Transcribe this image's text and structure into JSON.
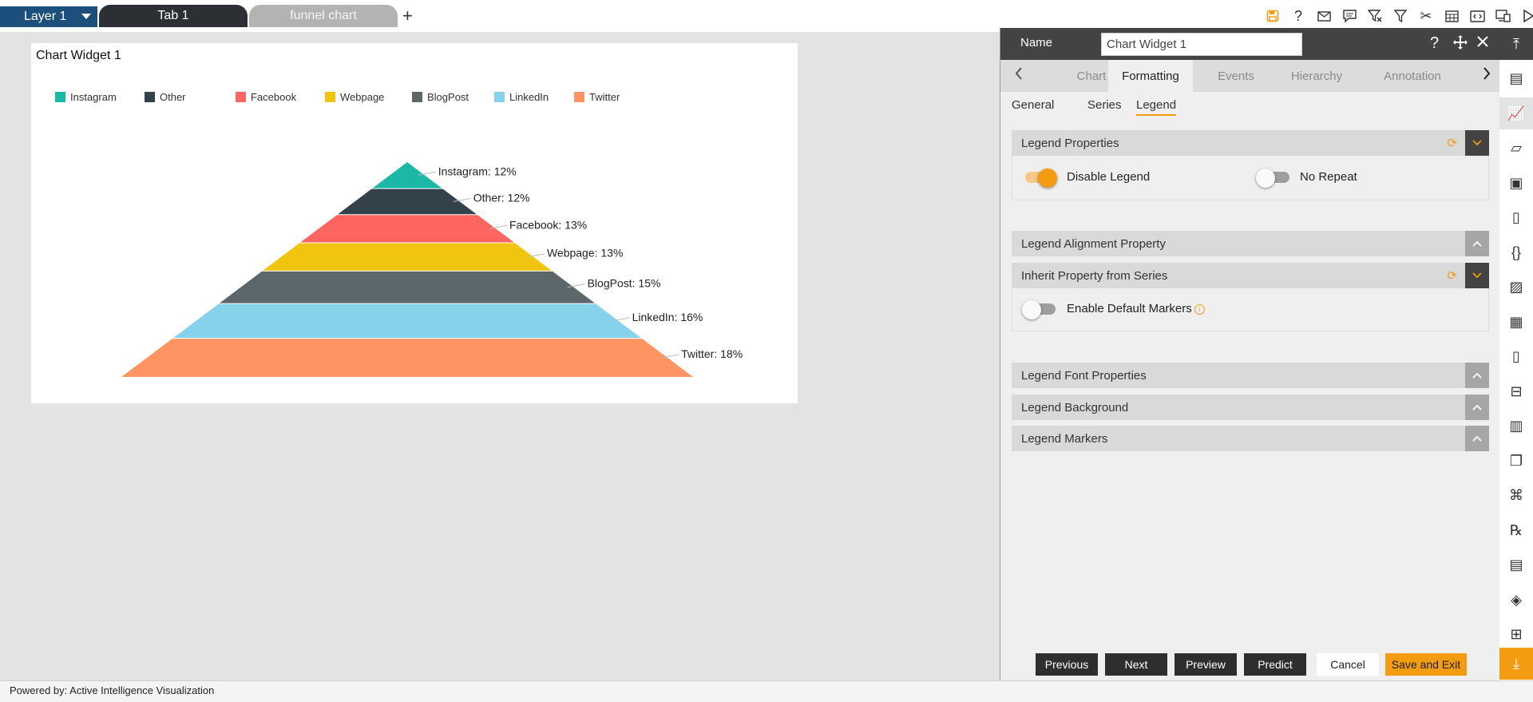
{
  "topbar": {
    "layer_label": "Layer 1",
    "tabs": [
      "Tab 1",
      "funnel chart"
    ],
    "add_tab": "+"
  },
  "widget": {
    "title": "Chart Widget 1"
  },
  "chart_data": {
    "type": "pyramid",
    "title": "Chart Widget 1",
    "categories": [
      "Instagram",
      "Other",
      "Facebook",
      "Webpage",
      "BlogPost",
      "LinkedIn",
      "Twitter"
    ],
    "values": [
      12,
      12,
      13,
      13,
      15,
      16,
      18
    ],
    "unit": "%",
    "colors": [
      "#1bb8a8",
      "#33424a",
      "#fe6561",
      "#f1c40f",
      "#5b676b",
      "#87d2eb",
      "#fd9461"
    ],
    "data_labels": [
      "Instagram: 12%",
      "Other: 12%",
      "Facebook: 13%",
      "Webpage: 13%",
      "BlogPost: 15%",
      "LinkedIn: 16%",
      "Twitter: 18%"
    ],
    "legend_position": "top-left"
  },
  "panel": {
    "name_label": "Name",
    "name_value": "Chart Widget 1",
    "tabs": [
      "Chart",
      "Formatting",
      "Events",
      "Hierarchy",
      "Annotation"
    ],
    "active_tab": "Formatting",
    "inner_tabs": [
      "General",
      "Series",
      "Legend"
    ],
    "active_inner_tab": "Legend",
    "sections": {
      "legend_properties": "Legend Properties",
      "legend_alignment": "Legend Alignment Property",
      "inherit": "Inherit Property from Series",
      "font": "Legend Font Properties",
      "background": "Legend Background",
      "markers": "Legend Markers"
    },
    "toggles": {
      "disable_legend": {
        "label": "Disable Legend",
        "on": true
      },
      "no_repeat": {
        "label": "No Repeat",
        "on": false
      },
      "enable_default_markers": {
        "label": "Enable Default Markers",
        "on": false
      }
    },
    "buttons": {
      "previous": "Previous",
      "next": "Next",
      "preview": "Preview",
      "predict": "Predict",
      "cancel": "Cancel",
      "save_exit": "Save and Exit"
    }
  },
  "status_text": "Powered by: Active Intelligence Visualization",
  "icons": {
    "top": [
      "save-icon",
      "help-icon",
      "mail-icon",
      "comment-icon",
      "clear-filter-icon",
      "filter-icon",
      "tools-icon",
      "table-icon",
      "embed-icon",
      "devices-icon",
      "play-icon"
    ],
    "rail": [
      "collapse-up-icon",
      "list-widget-icon",
      "chart-icon",
      "map-icon",
      "report-icon",
      "document-icon",
      "braces-icon",
      "image-icon",
      "datagrid-icon",
      "file-icon",
      "hierarchy-icon",
      "bar-chart-icon",
      "copy-icon",
      "cluster-icon",
      "rx-icon",
      "notes-icon",
      "layers-icon",
      "components-icon",
      "download-icon"
    ]
  }
}
